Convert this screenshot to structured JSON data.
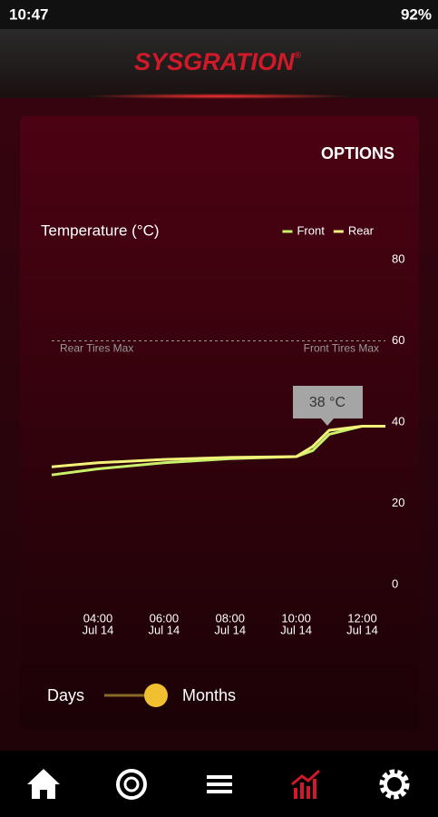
{
  "status_bar": {
    "time": "10:47",
    "battery": "92%"
  },
  "header": {
    "logo": "SYSGRATION",
    "logo_mark": "®"
  },
  "options": "OPTIONS",
  "chart_data": {
    "type": "line",
    "title": "Temperature (°C)",
    "x": [
      2.6,
      4,
      6,
      8,
      10,
      10.5,
      11,
      11.5,
      12,
      12.7
    ],
    "series": [
      {
        "name": "Front",
        "color": "#c8f06a",
        "values": [
          27,
          28.5,
          30,
          31,
          31.5,
          33,
          37,
          38,
          39,
          39
        ]
      },
      {
        "name": "Rear",
        "color": "#f2f27a",
        "values": [
          29,
          30,
          30.8,
          31.3,
          31.5,
          34,
          38,
          38.5,
          39,
          39
        ]
      }
    ],
    "xlim": [
      2.6,
      12.7
    ],
    "xticks": [
      {
        "value": 4,
        "label": "04:00"
      },
      {
        "value": 6,
        "label": "06:00"
      },
      {
        "value": 8,
        "label": "08:00"
      },
      {
        "value": 10,
        "label": "10:00"
      },
      {
        "value": 12,
        "label": "12:00"
      }
    ],
    "xtick_dates": [
      "Jul 14",
      "Jul 14",
      "Jul 14",
      "Jul 14",
      "Jul 14"
    ],
    "ylim": [
      0,
      80
    ],
    "yticks": [
      0,
      20,
      40,
      60,
      80
    ],
    "reference_lines": [
      {
        "value": 60,
        "left_label": "Rear Tires Max",
        "right_label": "Front Tires Max"
      }
    ],
    "tooltip": "38 °C",
    "grid": false,
    "legend": "top-right"
  },
  "toggle": {
    "left": "Days",
    "right": "Months"
  }
}
